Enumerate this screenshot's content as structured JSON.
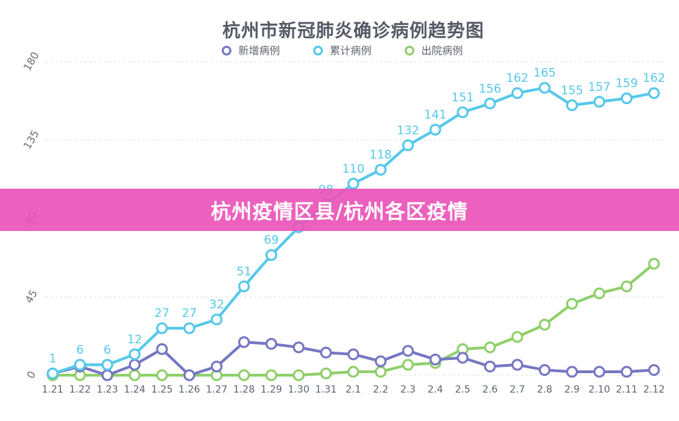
{
  "chart_data": {
    "type": "line",
    "title": "杭州市新冠肺炎确诊病例趋势图",
    "categories": [
      "1.21",
      "1.22",
      "1.23",
      "1.24",
      "1.25",
      "1.26",
      "1.27",
      "1.28",
      "1.29",
      "1.30",
      "1.31",
      "2.1",
      "2.2",
      "2.3",
      "2.4",
      "2.5",
      "2.6",
      "2.7",
      "2.8",
      "2.9",
      "2.10",
      "2.11",
      "2.12"
    ],
    "yticks": [
      "0",
      "45",
      "90",
      "135",
      "180"
    ],
    "ylim": [
      0,
      180
    ],
    "grid": true,
    "legend_position": "top",
    "series": [
      {
        "name": "新增病例",
        "color": "#7577c2",
        "values": [
          1,
          5,
          0,
          6,
          15,
          0,
          5,
          19,
          18,
          16,
          13,
          12,
          8,
          14,
          9,
          10,
          5,
          6,
          3,
          2,
          2,
          2,
          3
        ],
        "labels": []
      },
      {
        "name": "累计病例",
        "color": "#56c8ea",
        "values": [
          1,
          6,
          6,
          12,
          27,
          27,
          32,
          51,
          69,
          85,
          98,
          110,
          118,
          132,
          141,
          151,
          156,
          162,
          165,
          155,
          157,
          159,
          162
        ],
        "labels": [
          "1",
          "6",
          "6",
          "12",
          "27",
          "27",
          "32",
          "51",
          "69",
          "",
          "98",
          "110",
          "118",
          "132",
          "141",
          "151",
          "156",
          "162",
          "165",
          "155",
          "157",
          "159",
          "162"
        ]
      },
      {
        "name": "出院病例",
        "color": "#8fcf6a",
        "values": [
          0,
          0,
          0,
          0,
          0,
          0,
          0,
          0,
          0,
          0,
          1,
          2,
          2,
          6,
          7,
          15,
          16,
          22,
          29,
          41,
          47,
          51,
          64
        ],
        "labels": []
      }
    ]
  },
  "banner": {
    "text": "杭州疫情区县/杭州各区疫情"
  }
}
